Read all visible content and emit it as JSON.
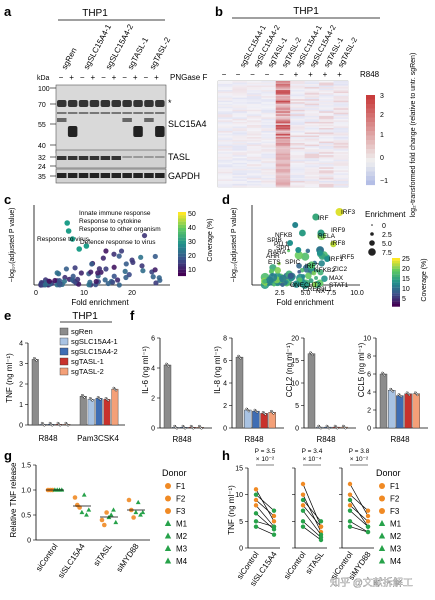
{
  "panels": {
    "a": {
      "letter": "a",
      "group": "THP1",
      "lanes": [
        "sgRen",
        "sgSLC15A4-1",
        "sgSLC15A4-2",
        "sgTASL-1",
        "sgTASL-2"
      ],
      "pngase_signs": [
        "−",
        "+",
        "−",
        "+",
        "−",
        "+",
        "−",
        "+",
        "−",
        "+"
      ],
      "pngase_label": "PNGase F",
      "kda_label": "kDa",
      "markers_top": [
        "100",
        "70",
        "55",
        "40"
      ],
      "markers_bottom": [
        "32",
        "24",
        "35"
      ],
      "band_labels": [
        "SLC15A4",
        "TASL",
        "GAPDH"
      ],
      "asterisk": "*"
    },
    "b": {
      "letter": "b",
      "group": "THP1",
      "lanes": [
        "sgSLC15A4-1",
        "sgSLC15A4-2",
        "sgTASL-1",
        "sgTASL-2",
        "sgSLC15A4-1",
        "sgSLC15A4-2",
        "sgTASL-1",
        "sgTASL-2"
      ],
      "r848_signs": [
        "−",
        "−",
        "−",
        "−",
        "+",
        "+",
        "+",
        "+"
      ],
      "r848_label": "R848",
      "colorbar_ticks": [
        "3",
        "2",
        "1",
        "0",
        "−1"
      ],
      "colorbar_title": "log₂-transformed fold change (relative to untr. sgRen)"
    },
    "c": {
      "letter": "c",
      "ylabel": "−log₁₀(adjusted P value)",
      "xlabel": "Fold enrichment",
      "xticks": [
        "0",
        "10",
        "20"
      ],
      "annotations": [
        "Innate immune response",
        "Response to cytokine",
        "Response to other organism",
        "Response to virus",
        "Defence response to virus"
      ],
      "colorbar_title": "Coverage (%)",
      "colorbar_ticks": [
        "50",
        "40",
        "30",
        "20",
        "10"
      ]
    },
    "d": {
      "letter": "d",
      "ylabel": "−log₁₀(adjusted P value)",
      "xlabel": "Fold enrichment",
      "xticks": [
        "2.5",
        "5.0",
        "7.5",
        "10.0"
      ],
      "labels": [
        "IRF3",
        "IRF",
        "IRF9",
        "NFKB",
        "RELA",
        "IRF8",
        "SPIB",
        "PU.1",
        "SPI1",
        "RARA",
        "AHR",
        "ETS",
        "SPIC",
        "IRF7",
        "IRF1",
        "IRF5",
        "NFKB2",
        "ZIC2",
        "MAX",
        "STAT1",
        "ONECUT2",
        "CREB3L1",
        "NX"
      ],
      "size_title": "Enrichment",
      "size_ticks": [
        "0",
        "2.5",
        "5.0",
        "7.5"
      ],
      "colorbar_title": "Coverage (%)",
      "colorbar_ticks": [
        "25",
        "20",
        "15",
        "10",
        "5"
      ]
    },
    "e": {
      "letter": "e",
      "group": "THP1",
      "legend": [
        "sgRen",
        "sgSLC15A4-1",
        "sgSLC15A4-2",
        "sgTASL-1",
        "sgTASL-2"
      ],
      "ylabel": "TNF (ng ml⁻¹)",
      "yticks": [
        "4",
        "3",
        "2",
        "1",
        "0"
      ],
      "categories": [
        "R848",
        "Pam3CSK4"
      ]
    },
    "f": {
      "letter": "f",
      "subplots": [
        {
          "ylabel": "IL-6 (ng ml⁻¹)",
          "yticks": [
            "6",
            "4",
            "2",
            "0"
          ],
          "xlabel": "R848"
        },
        {
          "ylabel": "IL-8 (ng ml⁻¹)",
          "yticks": [
            "8",
            "6",
            "4",
            "2",
            "0"
          ],
          "xlabel": "R848"
        },
        {
          "ylabel": "CCL2 (ng ml⁻¹)",
          "yticks": [
            "20",
            "15",
            "10",
            "5",
            "0"
          ],
          "xlabel": "R848"
        },
        {
          "ylabel": "CCL5 (ng ml⁻¹)",
          "yticks": [
            "10",
            "8",
            "6",
            "4",
            "2",
            "0"
          ],
          "xlabel": "R848"
        }
      ]
    },
    "g": {
      "letter": "g",
      "ylabel": "Relative TNF release",
      "yticks": [
        "1.5",
        "1.0",
        "0.5",
        "0"
      ],
      "categories": [
        "siControl",
        "siSLC15A4",
        "siTASL",
        "siMYD88"
      ],
      "donor_title": "Donor",
      "donors": [
        "F1",
        "F2",
        "F3",
        "M1",
        "M2",
        "M3",
        "M4"
      ]
    },
    "h": {
      "letter": "h",
      "ylabel": "TNF (ng ml⁻¹)",
      "yticks": [
        "15",
        "10",
        "5",
        "0"
      ],
      "pvalues": [
        "P = 3.5 × 10⁻²",
        "P = 3.4 × 10⁻⁴",
        "P = 3.8 × 10⁻²"
      ],
      "xlabels": [
        [
          "siControl",
          "siSLC15A4"
        ],
        [
          "siControl",
          "siTASL"
        ],
        [
          "siControl",
          "siMYD88"
        ]
      ],
      "donor_title": "Donor",
      "donors": [
        "F1",
        "F2",
        "F3",
        "M1",
        "M2",
        "M3",
        "M4"
      ]
    }
  },
  "watermark": "知乎 @文献拆解工",
  "colors": {
    "sgRen": "#8c8c8c",
    "sgSLC15A4-1": "#a9c3e3",
    "sgSLC15A4-2": "#3e6db4",
    "sgTASL-1": "#c8322c",
    "sgTASL-2": "#f4a078",
    "female": "#f08a24",
    "male": "#27a24a"
  },
  "chart_data": [
    {
      "type": "bar",
      "panel": "e",
      "categories": [
        "R848",
        "Pam3CSK4"
      ],
      "ylabel": "TNF (ng ml⁻¹)",
      "ylim": [
        0,
        4
      ],
      "series": [
        {
          "name": "sgRen",
          "values": [
            3.2,
            1.4
          ]
        },
        {
          "name": "sgSLC15A4-1",
          "values": [
            0.03,
            1.25
          ]
        },
        {
          "name": "sgSLC15A4-2",
          "values": [
            0.03,
            1.3
          ]
        },
        {
          "name": "sgTASL-1",
          "values": [
            0.03,
            1.25
          ]
        },
        {
          "name": "sgTASL-2",
          "values": [
            0.03,
            1.75
          ]
        }
      ]
    },
    {
      "type": "bar",
      "panel": "f",
      "ylabel": "IL-6 (ng ml⁻¹)",
      "ylim": [
        0,
        6
      ],
      "categories": [
        "R848"
      ],
      "series": [
        {
          "name": "sgRen",
          "values": [
            4.2
          ]
        },
        {
          "name": "sgSLC15A4-1",
          "values": [
            0.05
          ]
        },
        {
          "name": "sgSLC15A4-2",
          "values": [
            0.05
          ]
        },
        {
          "name": "sgTASL-1",
          "values": [
            0.05
          ]
        },
        {
          "name": "sgTASL-2",
          "values": [
            0.05
          ]
        }
      ]
    },
    {
      "type": "bar",
      "panel": "f",
      "ylabel": "IL-8 (ng ml⁻¹)",
      "ylim": [
        0,
        8
      ],
      "categories": [
        "R848"
      ],
      "series": [
        {
          "name": "sgRen",
          "values": [
            6.3
          ]
        },
        {
          "name": "sgSLC15A4-1",
          "values": [
            1.6
          ]
        },
        {
          "name": "sgSLC15A4-2",
          "values": [
            1.5
          ]
        },
        {
          "name": "sgTASL-1",
          "values": [
            1.3
          ]
        },
        {
          "name": "sgTASL-2",
          "values": [
            1.4
          ]
        }
      ]
    },
    {
      "type": "bar",
      "panel": "f",
      "ylabel": "CCL2 (ng ml⁻¹)",
      "ylim": [
        0,
        20
      ],
      "categories": [
        "R848"
      ],
      "series": [
        {
          "name": "sgRen",
          "values": [
            16.5
          ]
        },
        {
          "name": "sgSLC15A4-1",
          "values": [
            0.2
          ]
        },
        {
          "name": "sgSLC15A4-2",
          "values": [
            0.2
          ]
        },
        {
          "name": "sgTASL-1",
          "values": [
            0.2
          ]
        },
        {
          "name": "sgTASL-2",
          "values": [
            0.2
          ]
        }
      ]
    },
    {
      "type": "bar",
      "panel": "f",
      "ylabel": "CCL5 (ng ml⁻¹)",
      "ylim": [
        0,
        10
      ],
      "categories": [
        "R848"
      ],
      "series": [
        {
          "name": "sgRen",
          "values": [
            6.0
          ]
        },
        {
          "name": "sgSLC15A4-1",
          "values": [
            4.2
          ]
        },
        {
          "name": "sgSLC15A4-2",
          "values": [
            3.6
          ]
        },
        {
          "name": "sgTASL-1",
          "values": [
            3.8
          ]
        },
        {
          "name": "sgTASL-2",
          "values": [
            3.8
          ]
        }
      ]
    },
    {
      "type": "scatter",
      "panel": "g",
      "categories": [
        "siControl",
        "siSLC15A4",
        "siTASL",
        "siMYD88"
      ],
      "ylabel": "Relative TNF release",
      "ylim": [
        0,
        1.5
      ],
      "means": [
        1.0,
        0.68,
        0.46,
        0.6
      ],
      "points": [
        [
          1.0,
          1.0,
          1.0,
          1.0,
          1.0,
          1.0,
          1.0
        ],
        [
          0.85,
          0.7,
          0.65,
          0.55,
          0.9,
          0.5,
          0.6
        ],
        [
          0.4,
          0.3,
          0.55,
          0.45,
          0.5,
          0.6,
          0.35
        ],
        [
          0.8,
          0.6,
          0.45,
          0.55,
          0.75,
          0.5,
          0.55
        ]
      ]
    },
    {
      "type": "line",
      "panel": "h",
      "ylabel": "TNF (ng ml⁻¹)",
      "ylim": [
        0,
        15
      ],
      "pairs": [
        {
          "x": [
            "siControl",
            "siSLC15A4"
          ],
          "lines": [
            [
              11,
              5
            ],
            [
              9,
              6
            ],
            [
              8,
              4
            ],
            [
              6.5,
              3.5
            ],
            [
              5,
              4
            ],
            [
              4,
              2.5
            ],
            [
              10,
              7
            ]
          ]
        },
        {
          "x": [
            "siControl",
            "siTASL"
          ],
          "lines": [
            [
              12,
              4
            ],
            [
              10,
              3
            ],
            [
              8,
              4
            ],
            [
              7,
              2.5
            ],
            [
              5,
              2
            ],
            [
              4,
              1.5
            ],
            [
              9,
              5
            ]
          ]
        },
        {
          "x": [
            "siControl",
            "siMYD88"
          ],
          "lines": [
            [
              12,
              6
            ],
            [
              10,
              7
            ],
            [
              8,
              5
            ],
            [
              7,
              4
            ],
            [
              5,
              3
            ],
            [
              4,
              3
            ],
            [
              9,
              4
            ]
          ]
        }
      ]
    }
  ]
}
